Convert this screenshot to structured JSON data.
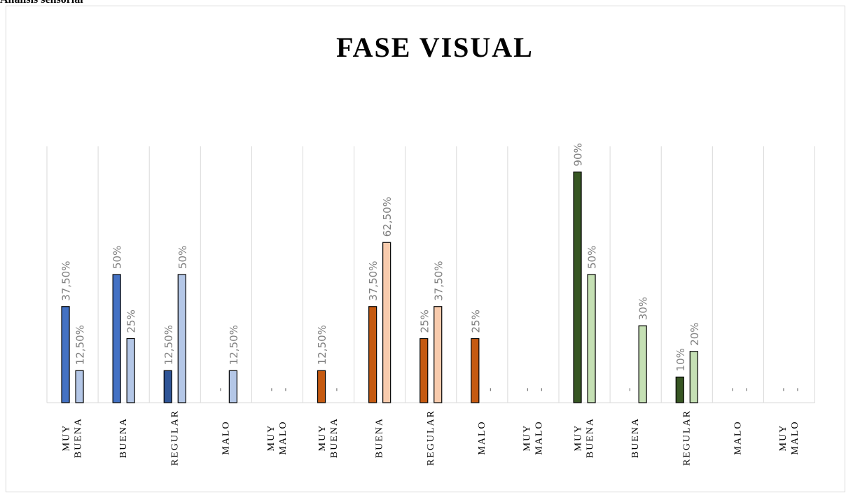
{
  "heading": "Análisis sensorial",
  "chart_data": {
    "type": "bar",
    "title": "FASE VISUAL",
    "ylim": [
      0,
      100
    ],
    "grid": "vertical separators",
    "legend": "none",
    "groups": [
      {
        "colors": [
          "#4472c4",
          "#b4c7e7"
        ],
        "categories": [
          {
            "label": [
              "MUY",
              "BUENA"
            ],
            "values": [
              37.5,
              12.5
            ],
            "labels": [
              "37,50%",
              "12,50%"
            ]
          },
          {
            "label": [
              "BUENA"
            ],
            "values": [
              50,
              25
            ],
            "labels": [
              "50%",
              "25%"
            ]
          },
          {
            "label": [
              "REGULAR"
            ],
            "values": [
              12.5,
              50
            ],
            "labels": [
              "12,50%",
              "50%"
            ],
            "colors": [
              "#2f5597",
              "#b4c7e7"
            ]
          },
          {
            "label": [
              "MALO"
            ],
            "values": [
              0,
              12.5
            ],
            "labels": [
              "-",
              "12,50%"
            ]
          },
          {
            "label": [
              "MUY",
              "MALO"
            ],
            "values": [
              0,
              0
            ],
            "labels": [
              "-",
              "-"
            ]
          }
        ]
      },
      {
        "colors": [
          "#c55a11",
          "#f8cbad"
        ],
        "categories": [
          {
            "label": [
              "MUY",
              "BUENA"
            ],
            "values": [
              12.5,
              0
            ],
            "labels": [
              "12,50%",
              "-"
            ]
          },
          {
            "label": [
              "BUENA"
            ],
            "values": [
              37.5,
              62.5
            ],
            "labels": [
              "37,50%",
              "62,50%"
            ]
          },
          {
            "label": [
              "REGULAR"
            ],
            "values": [
              25,
              37.5
            ],
            "labels": [
              "25%",
              "37,50%"
            ]
          },
          {
            "label": [
              "MALO"
            ],
            "values": [
              25,
              0
            ],
            "labels": [
              "25%",
              "-"
            ]
          },
          {
            "label": [
              "MUY",
              "MALO"
            ],
            "values": [
              0,
              0
            ],
            "labels": [
              "-",
              "-"
            ]
          }
        ]
      },
      {
        "colors": [
          "#375623",
          "#c5e0b4"
        ],
        "categories": [
          {
            "label": [
              "MUY",
              "BUENA"
            ],
            "values": [
              90,
              50
            ],
            "labels": [
              "90%",
              "50%"
            ]
          },
          {
            "label": [
              "BUENA"
            ],
            "values": [
              0,
              30
            ],
            "labels": [
              "-",
              "30%"
            ]
          },
          {
            "label": [
              "REGULAR"
            ],
            "values": [
              10,
              20
            ],
            "labels": [
              "10%",
              "20%"
            ]
          },
          {
            "label": [
              "MALO"
            ],
            "values": [
              0,
              0
            ],
            "labels": [
              "-",
              "-"
            ]
          },
          {
            "label": [
              "MUY",
              "MALO"
            ],
            "values": [
              0,
              0
            ],
            "labels": [
              "-",
              "-"
            ]
          }
        ]
      }
    ]
  }
}
